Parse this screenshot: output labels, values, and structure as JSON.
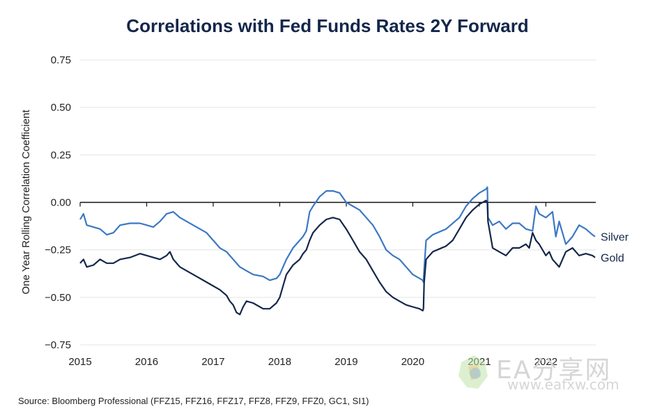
{
  "colors": {
    "silver": "#3b78c4",
    "gold": "#14264a",
    "grid": "#e4e4e4",
    "zero": "#111111"
  },
  "chart_data": {
    "type": "line",
    "title": "Correlations with Fed Funds Rates 2Y Forward",
    "xlabel": "",
    "ylabel": "One Year Rolling Correlation Coefficient",
    "xlim": [
      2015.0,
      2022.75
    ],
    "ylim": [
      -0.75,
      0.75
    ],
    "x_ticks": [
      2015,
      2016,
      2017,
      2018,
      2019,
      2020,
      2021,
      2022
    ],
    "x_tick_labels": [
      "2015",
      "2016",
      "2017",
      "2018",
      "2019",
      "2020",
      "2021",
      "2022"
    ],
    "y_ticks": [
      0.75,
      0.5,
      0.25,
      0.0,
      -0.25,
      -0.5,
      -0.75
    ],
    "y_tick_labels": [
      "0.75",
      "0.50",
      "0.25",
      "0.00",
      "−0.25",
      "−0.50",
      "−0.75"
    ],
    "grid": true,
    "series": [
      {
        "name": "Silver",
        "points": [
          [
            2015.0,
            -0.09
          ],
          [
            2015.05,
            -0.06
          ],
          [
            2015.1,
            -0.12
          ],
          [
            2015.2,
            -0.13
          ],
          [
            2015.3,
            -0.14
          ],
          [
            2015.4,
            -0.17
          ],
          [
            2015.5,
            -0.16
          ],
          [
            2015.6,
            -0.12
          ],
          [
            2015.75,
            -0.11
          ],
          [
            2015.9,
            -0.11
          ],
          [
            2016.0,
            -0.12
          ],
          [
            2016.1,
            -0.13
          ],
          [
            2016.2,
            -0.1
          ],
          [
            2016.3,
            -0.06
          ],
          [
            2016.4,
            -0.05
          ],
          [
            2016.5,
            -0.08
          ],
          [
            2016.6,
            -0.1
          ],
          [
            2016.75,
            -0.13
          ],
          [
            2016.9,
            -0.16
          ],
          [
            2017.0,
            -0.2
          ],
          [
            2017.1,
            -0.24
          ],
          [
            2017.2,
            -0.26
          ],
          [
            2017.3,
            -0.3
          ],
          [
            2017.4,
            -0.34
          ],
          [
            2017.5,
            -0.36
          ],
          [
            2017.6,
            -0.38
          ],
          [
            2017.75,
            -0.39
          ],
          [
            2017.85,
            -0.41
          ],
          [
            2017.95,
            -0.4
          ],
          [
            2018.0,
            -0.38
          ],
          [
            2018.05,
            -0.34
          ],
          [
            2018.1,
            -0.3
          ],
          [
            2018.2,
            -0.24
          ],
          [
            2018.3,
            -0.2
          ],
          [
            2018.35,
            -0.18
          ],
          [
            2018.4,
            -0.15
          ],
          [
            2018.45,
            -0.05
          ],
          [
            2018.5,
            -0.02
          ],
          [
            2018.6,
            0.03
          ],
          [
            2018.7,
            0.06
          ],
          [
            2018.8,
            0.06
          ],
          [
            2018.9,
            0.05
          ],
          [
            2019.0,
            0.0
          ],
          [
            2019.1,
            -0.02
          ],
          [
            2019.2,
            -0.04
          ],
          [
            2019.3,
            -0.08
          ],
          [
            2019.4,
            -0.12
          ],
          [
            2019.5,
            -0.18
          ],
          [
            2019.6,
            -0.25
          ],
          [
            2019.7,
            -0.28
          ],
          [
            2019.8,
            -0.3
          ],
          [
            2019.9,
            -0.34
          ],
          [
            2020.0,
            -0.38
          ],
          [
            2020.1,
            -0.4
          ],
          [
            2020.15,
            -0.41
          ],
          [
            2020.16,
            -0.42
          ],
          [
            2020.17,
            -0.35
          ],
          [
            2020.2,
            -0.2
          ],
          [
            2020.3,
            -0.17
          ],
          [
            2020.5,
            -0.14
          ],
          [
            2020.7,
            -0.08
          ],
          [
            2020.8,
            -0.02
          ],
          [
            2020.9,
            0.02
          ],
          [
            2021.0,
            0.05
          ],
          [
            2021.1,
            0.07
          ],
          [
            2021.12,
            0.08
          ],
          [
            2021.13,
            -0.08
          ],
          [
            2021.2,
            -0.12
          ],
          [
            2021.3,
            -0.1
          ],
          [
            2021.4,
            -0.14
          ],
          [
            2021.5,
            -0.11
          ],
          [
            2021.6,
            -0.11
          ],
          [
            2021.7,
            -0.14
          ],
          [
            2021.8,
            -0.15
          ],
          [
            2021.85,
            -0.02
          ],
          [
            2021.9,
            -0.06
          ],
          [
            2022.0,
            -0.08
          ],
          [
            2022.1,
            -0.05
          ],
          [
            2022.15,
            -0.18
          ],
          [
            2022.2,
            -0.1
          ],
          [
            2022.3,
            -0.22
          ],
          [
            2022.4,
            -0.18
          ],
          [
            2022.5,
            -0.12
          ],
          [
            2022.6,
            -0.14
          ],
          [
            2022.7,
            -0.17
          ],
          [
            2022.74,
            -0.18
          ]
        ]
      },
      {
        "name": "Gold",
        "points": [
          [
            2015.0,
            -0.32
          ],
          [
            2015.05,
            -0.3
          ],
          [
            2015.1,
            -0.34
          ],
          [
            2015.2,
            -0.33
          ],
          [
            2015.3,
            -0.3
          ],
          [
            2015.4,
            -0.32
          ],
          [
            2015.5,
            -0.32
          ],
          [
            2015.6,
            -0.3
          ],
          [
            2015.75,
            -0.29
          ],
          [
            2015.9,
            -0.27
          ],
          [
            2016.0,
            -0.28
          ],
          [
            2016.1,
            -0.29
          ],
          [
            2016.2,
            -0.3
          ],
          [
            2016.3,
            -0.28
          ],
          [
            2016.35,
            -0.26
          ],
          [
            2016.4,
            -0.3
          ],
          [
            2016.5,
            -0.34
          ],
          [
            2016.6,
            -0.36
          ],
          [
            2016.75,
            -0.39
          ],
          [
            2016.9,
            -0.42
          ],
          [
            2017.0,
            -0.44
          ],
          [
            2017.1,
            -0.46
          ],
          [
            2017.2,
            -0.49
          ],
          [
            2017.25,
            -0.52
          ],
          [
            2017.3,
            -0.54
          ],
          [
            2017.35,
            -0.58
          ],
          [
            2017.4,
            -0.59
          ],
          [
            2017.45,
            -0.55
          ],
          [
            2017.5,
            -0.52
          ],
          [
            2017.6,
            -0.53
          ],
          [
            2017.75,
            -0.56
          ],
          [
            2017.85,
            -0.56
          ],
          [
            2017.95,
            -0.53
          ],
          [
            2018.0,
            -0.5
          ],
          [
            2018.05,
            -0.44
          ],
          [
            2018.1,
            -0.38
          ],
          [
            2018.2,
            -0.33
          ],
          [
            2018.3,
            -0.3
          ],
          [
            2018.35,
            -0.27
          ],
          [
            2018.4,
            -0.25
          ],
          [
            2018.45,
            -0.2
          ],
          [
            2018.5,
            -0.16
          ],
          [
            2018.6,
            -0.12
          ],
          [
            2018.7,
            -0.09
          ],
          [
            2018.8,
            -0.08
          ],
          [
            2018.9,
            -0.09
          ],
          [
            2019.0,
            -0.14
          ],
          [
            2019.1,
            -0.2
          ],
          [
            2019.2,
            -0.26
          ],
          [
            2019.3,
            -0.3
          ],
          [
            2019.4,
            -0.36
          ],
          [
            2019.5,
            -0.42
          ],
          [
            2019.6,
            -0.47
          ],
          [
            2019.7,
            -0.5
          ],
          [
            2019.8,
            -0.52
          ],
          [
            2019.9,
            -0.54
          ],
          [
            2020.0,
            -0.55
          ],
          [
            2020.1,
            -0.56
          ],
          [
            2020.15,
            -0.57
          ],
          [
            2020.16,
            -0.56
          ],
          [
            2020.17,
            -0.42
          ],
          [
            2020.2,
            -0.3
          ],
          [
            2020.3,
            -0.26
          ],
          [
            2020.5,
            -0.23
          ],
          [
            2020.6,
            -0.2
          ],
          [
            2020.7,
            -0.14
          ],
          [
            2020.8,
            -0.08
          ],
          [
            2020.9,
            -0.04
          ],
          [
            2021.0,
            -0.01
          ],
          [
            2021.1,
            0.01
          ],
          [
            2021.12,
            0.0
          ],
          [
            2021.13,
            -0.1
          ],
          [
            2021.2,
            -0.24
          ],
          [
            2021.3,
            -0.26
          ],
          [
            2021.4,
            -0.28
          ],
          [
            2021.5,
            -0.24
          ],
          [
            2021.6,
            -0.24
          ],
          [
            2021.7,
            -0.22
          ],
          [
            2021.75,
            -0.24
          ],
          [
            2021.8,
            -0.16
          ],
          [
            2021.85,
            -0.2
          ],
          [
            2021.9,
            -0.22
          ],
          [
            2022.0,
            -0.28
          ],
          [
            2022.05,
            -0.26
          ],
          [
            2022.1,
            -0.3
          ],
          [
            2022.2,
            -0.34
          ],
          [
            2022.3,
            -0.26
          ],
          [
            2022.4,
            -0.24
          ],
          [
            2022.5,
            -0.28
          ],
          [
            2022.6,
            -0.27
          ],
          [
            2022.7,
            -0.28
          ],
          [
            2022.74,
            -0.29
          ]
        ]
      }
    ]
  },
  "source": "Source: Bloomberg Professional (FFZ15, FFZ16, FFZ17, FFZ8, FFZ9, FFZ0, GC1, SI1)",
  "watermark": {
    "title": "EA分享网",
    "url": "www.eafxw.com"
  }
}
